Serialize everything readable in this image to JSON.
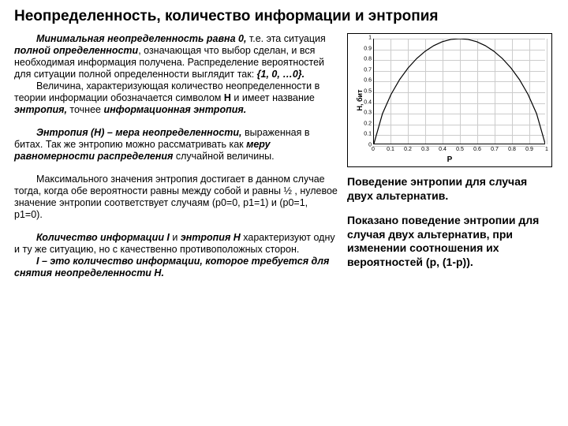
{
  "title_text": "Неопределенность, количество информации и энтропия",
  "title_fontsize": "19px",
  "body_fontsize": "12.5px",
  "right_fontsize": "14px",
  "right_lineheight": "1.25",
  "para1_a": "Минимальная неопределенность равна 0,",
  "para1_b": " т.е. эта ситуация ",
  "para1_c": "полной определенности",
  "para1_d": ", означающая что выбор сделан, и вся необходимая информация получена. Распределение вероятностей для ситуации полной определенности выглядит так: ",
  "para1_e": "{1, 0, …0}.",
  "para2_a": "Величина, характеризующая количество неопределенности в теории информации обозначается символом ",
  "para2_b": "H",
  "para2_c": " и имеет название ",
  "para2_d": "энтропия,",
  "para2_e": " точнее ",
  "para2_f": "информационная энтропия.",
  "para3_a": "Энтропия (H) – мера неопределенности,",
  "para3_b": " выраженная в битах. Так же энтропию можно рассматривать как ",
  "para3_c": "меру равномерности распределения",
  "para3_d": " случайной величины.",
  "para4_a": "Максимального значения энтропия достигает в данном случае тогда, когда обе вероятности равны между собой и равны ½ , нулевое значение энтропии соответствует случаям (p0=0, p1=1) и (p0=1, p1=0).",
  "para5_a": "Количество информации I",
  "para5_b": " и ",
  "para5_c": "энтропия H",
  "para5_d": " характеризуют одну и ту же ситуацию, но с качественно противоположных сторон.",
  "para6_a": "I – это количество информации, которое требуется для снятия неопределенности H.",
  "right1": "Поведение энтропии для случая двух альтернатив.",
  "right2": "Показано поведение энтропии для случая двух альтернатив, при изменении соотношения их вероятностей (p, (1-p)).",
  "chart": {
    "type": "line",
    "ylabel": "H, бит",
    "xlabel": "P",
    "ylim": [
      0,
      1
    ],
    "xlim": [
      0,
      1
    ],
    "yticks": [
      0,
      0.1,
      0.2,
      0.3,
      0.4,
      0.5,
      0.6,
      0.7,
      0.8,
      0.9,
      1
    ],
    "xticks": [
      0,
      0.1,
      0.2,
      0.3,
      0.4,
      0.5,
      0.6,
      0.7,
      0.8,
      0.9,
      1
    ],
    "line_color": "#000000",
    "grid_color": "#cccccc",
    "background": "#ffffff",
    "points": [
      [
        0,
        0
      ],
      [
        0.05,
        0.286
      ],
      [
        0.1,
        0.469
      ],
      [
        0.15,
        0.61
      ],
      [
        0.2,
        0.722
      ],
      [
        0.25,
        0.811
      ],
      [
        0.3,
        0.881
      ],
      [
        0.35,
        0.934
      ],
      [
        0.4,
        0.971
      ],
      [
        0.45,
        0.993
      ],
      [
        0.5,
        1.0
      ],
      [
        0.55,
        0.993
      ],
      [
        0.6,
        0.971
      ],
      [
        0.65,
        0.934
      ],
      [
        0.7,
        0.881
      ],
      [
        0.75,
        0.811
      ],
      [
        0.8,
        0.722
      ],
      [
        0.85,
        0.61
      ],
      [
        0.9,
        0.469
      ],
      [
        0.95,
        0.286
      ],
      [
        1,
        0
      ]
    ]
  }
}
